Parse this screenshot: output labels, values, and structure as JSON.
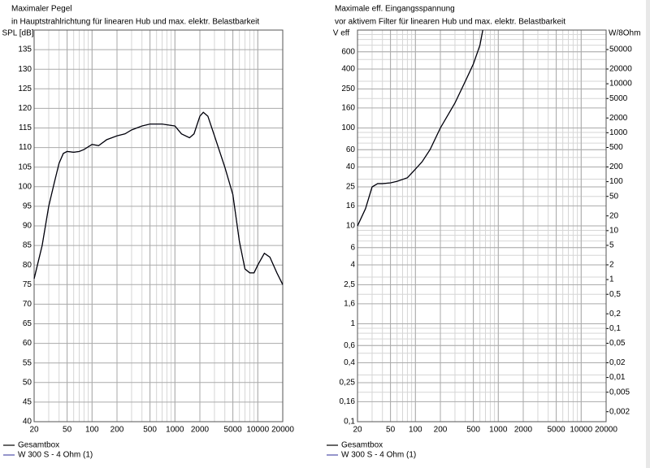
{
  "chart_data": [
    {
      "type": "line",
      "title": "Maximaler Pegel",
      "subtitle": "in Hauptstrahlrichtung für linearen Hub und max. elektr. Belastbarkeit",
      "ylabel": "SPL [dB]",
      "xscale": "log",
      "yscale": "linear",
      "grid": true,
      "legend": "bottom-left",
      "xlim": [
        20,
        20000
      ],
      "xticks": [
        20,
        50,
        100,
        200,
        500,
        1000,
        2000,
        5000,
        10000,
        20000
      ],
      "ylim": [
        40,
        140
      ],
      "yticks": [
        40,
        45,
        50,
        55,
        60,
        65,
        70,
        75,
        80,
        85,
        90,
        95,
        100,
        105,
        110,
        115,
        120,
        125,
        130,
        135
      ],
      "x": [
        20,
        25,
        30,
        35,
        40,
        45,
        50,
        60,
        70,
        80,
        100,
        120,
        150,
        200,
        250,
        300,
        400,
        500,
        700,
        1000,
        1200,
        1500,
        1700,
        2000,
        2200,
        2500,
        3000,
        4000,
        5000,
        6000,
        7000,
        8000,
        9000,
        10000,
        12000,
        14000,
        17000,
        20000
      ],
      "series": [
        {
          "name": "W 300 S - 4 Ohm (1)",
          "color": "#5050a8",
          "values": [
            76.5,
            85,
            95,
            101,
            106,
            108.5,
            109,
            108.8,
            109,
            109.5,
            110.8,
            110.5,
            112,
            113,
            113.5,
            114.5,
            115.5,
            116,
            116,
            115.5,
            113.5,
            112.5,
            113.5,
            118,
            119,
            118,
            113,
            105,
            98,
            86,
            79,
            78,
            78,
            80,
            83,
            82,
            78,
            75
          ]
        },
        {
          "name": "Gesamtbox",
          "color": "#000000",
          "values": [
            76.5,
            85,
            95,
            101,
            106,
            108.5,
            109,
            108.8,
            109,
            109.5,
            110.8,
            110.5,
            112,
            113,
            113.5,
            114.5,
            115.5,
            116,
            116,
            115.5,
            113.5,
            112.5,
            113.5,
            118,
            119,
            118,
            113,
            105,
            98,
            86,
            79,
            78,
            78,
            80,
            83,
            82,
            78,
            75
          ]
        }
      ]
    },
    {
      "type": "line",
      "title": "Maximale eff. Eingangsspannung",
      "subtitle": "vor aktivem Filter für linearen Hub und max. elektr. Belastbarkeit",
      "ylabel": "V eff",
      "y2label": "W/8Ohm",
      "xscale": "log",
      "yscale": "log",
      "grid": true,
      "legend": "bottom-left",
      "xlim": [
        20,
        20000
      ],
      "xticks": [
        20,
        50,
        100,
        200,
        500,
        1000,
        2000,
        5000,
        10000,
        20000
      ],
      "ylim": [
        0.1,
        1000
      ],
      "yticks": [
        {
          "value": 0.1,
          "label": "0,1"
        },
        {
          "value": 0.16,
          "label": "0,16"
        },
        {
          "value": 0.25,
          "label": "0,25"
        },
        {
          "value": 0.4,
          "label": "0,4"
        },
        {
          "value": 0.6,
          "label": "0,6"
        },
        1,
        {
          "value": 1.6,
          "label": "1,6"
        },
        {
          "value": 2.5,
          "label": "2,5"
        },
        4,
        6,
        10,
        16,
        25,
        40,
        60,
        100,
        160,
        250,
        400,
        600
      ],
      "y2lim": [
        0.00125,
        125000
      ],
      "y2ticks": [
        {
          "value": 0.002,
          "label": "0,002"
        },
        {
          "value": 0.005,
          "label": "0,005"
        },
        {
          "value": 0.01,
          "label": "0,01"
        },
        {
          "value": 0.02,
          "label": "0,02"
        },
        {
          "value": 0.05,
          "label": "0,05"
        },
        {
          "value": 0.1,
          "label": "0,1"
        },
        {
          "value": 0.2,
          "label": "0,2"
        },
        {
          "value": 0.5,
          "label": "0,5"
        },
        1,
        2,
        5,
        10,
        20,
        50,
        100,
        200,
        500,
        1000,
        2000,
        5000,
        10000,
        20000,
        50000
      ],
      "x": [
        20,
        25,
        30,
        35,
        40,
        50,
        60,
        80,
        100,
        120,
        150,
        200,
        300,
        400,
        500,
        600,
        650
      ],
      "series": [
        {
          "name": "W 300 S - 4 Ohm (1)",
          "color": "#5050a8",
          "values": [
            10,
            15,
            25,
            27,
            27,
            27.5,
            28.5,
            31,
            38,
            45,
            60,
            100,
            180,
            300,
            450,
            700,
            1000
          ]
        },
        {
          "name": "Gesamtbox",
          "color": "#000000",
          "values": [
            10,
            15,
            25,
            27,
            27,
            27.5,
            28.5,
            31,
            38,
            45,
            60,
            100,
            180,
            300,
            450,
            700,
            1000
          ]
        }
      ]
    }
  ]
}
